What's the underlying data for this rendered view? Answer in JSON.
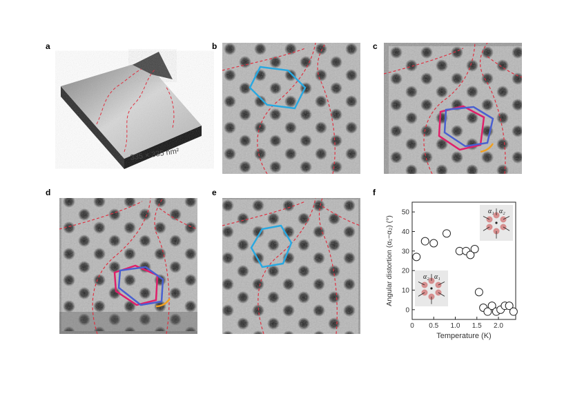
{
  "figure": {
    "panels": [
      {
        "letter": "a",
        "caption": "335 × 335 nm²"
      },
      {
        "letter": "b"
      },
      {
        "letter": "c"
      },
      {
        "letter": "d"
      },
      {
        "letter": "e"
      },
      {
        "letter": "f"
      }
    ]
  },
  "colors": {
    "domain_wall": "#e03040",
    "hexagon_cyan": "#2aa8e0",
    "hexagon_magenta": "#e0206a",
    "hexagon_blue": "#4a60d0",
    "arc_orange": "#f0a020"
  },
  "chart_data": {
    "type": "scatter",
    "xlabel": "Temperature (K)",
    "ylabel": "Angular distortion (α₁−α₂) (°)",
    "xlim": [
      0,
      2.4
    ],
    "ylim": [
      -5,
      55
    ],
    "xticks": [
      "0",
      "0.5",
      "1.0",
      "1.5",
      "2.0"
    ],
    "yticks": [
      "0",
      "10",
      "20",
      "30",
      "40",
      "50"
    ],
    "series": [
      {
        "x": [
          0.1,
          0.3,
          0.5,
          0.8,
          1.1,
          1.25,
          1.35,
          1.45,
          1.55,
          1.65,
          1.75,
          1.85,
          1.95,
          2.05,
          2.15,
          2.25,
          2.35
        ],
        "y": [
          27,
          35,
          34,
          39,
          30,
          30,
          28,
          31,
          9,
          1,
          -1,
          2,
          -1,
          0,
          2,
          2,
          -1
        ]
      }
    ],
    "marker": "open-circle",
    "insets": [
      {
        "labels": [
          "α₁",
          "α₂"
        ],
        "placement": "top-right"
      },
      {
        "labels": [
          "α₂",
          "α₁"
        ],
        "placement": "bottom-left"
      }
    ]
  }
}
